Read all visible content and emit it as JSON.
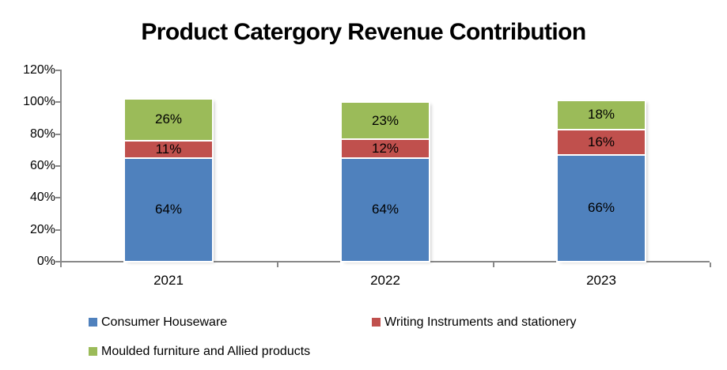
{
  "page": {
    "background": "#FFFFFF"
  },
  "chart_data": {
    "type": "bar",
    "subtype": "stacked-percent-column",
    "title": "Product Catergory Revenue Contribution",
    "categories": [
      "2021",
      "2022",
      "2023"
    ],
    "series": [
      {
        "name": "Consumer Houseware",
        "color": "#4F81BD",
        "values": [
          64,
          64,
          66
        ]
      },
      {
        "name": "Writing Instruments and stationery",
        "color": "#C0504D",
        "values": [
          11,
          12,
          16
        ]
      },
      {
        "name": "Moulded furniture and Allied products",
        "color": "#9BBB59",
        "values": [
          26,
          23,
          18
        ]
      }
    ],
    "data_labels": [
      [
        "64%",
        "64%",
        "66%"
      ],
      [
        "11%",
        "12%",
        "16%"
      ],
      [
        "26%",
        "23%",
        "18%"
      ]
    ],
    "xlabel": "",
    "ylabel": "",
    "ylim": [
      0,
      120
    ],
    "y_ticks": [
      "0%",
      "20%",
      "40%",
      "60%",
      "80%",
      "100%",
      "120%"
    ],
    "grid": false,
    "legend_position": "bottom",
    "axis_color": "#898989",
    "text_color": "#000000"
  }
}
